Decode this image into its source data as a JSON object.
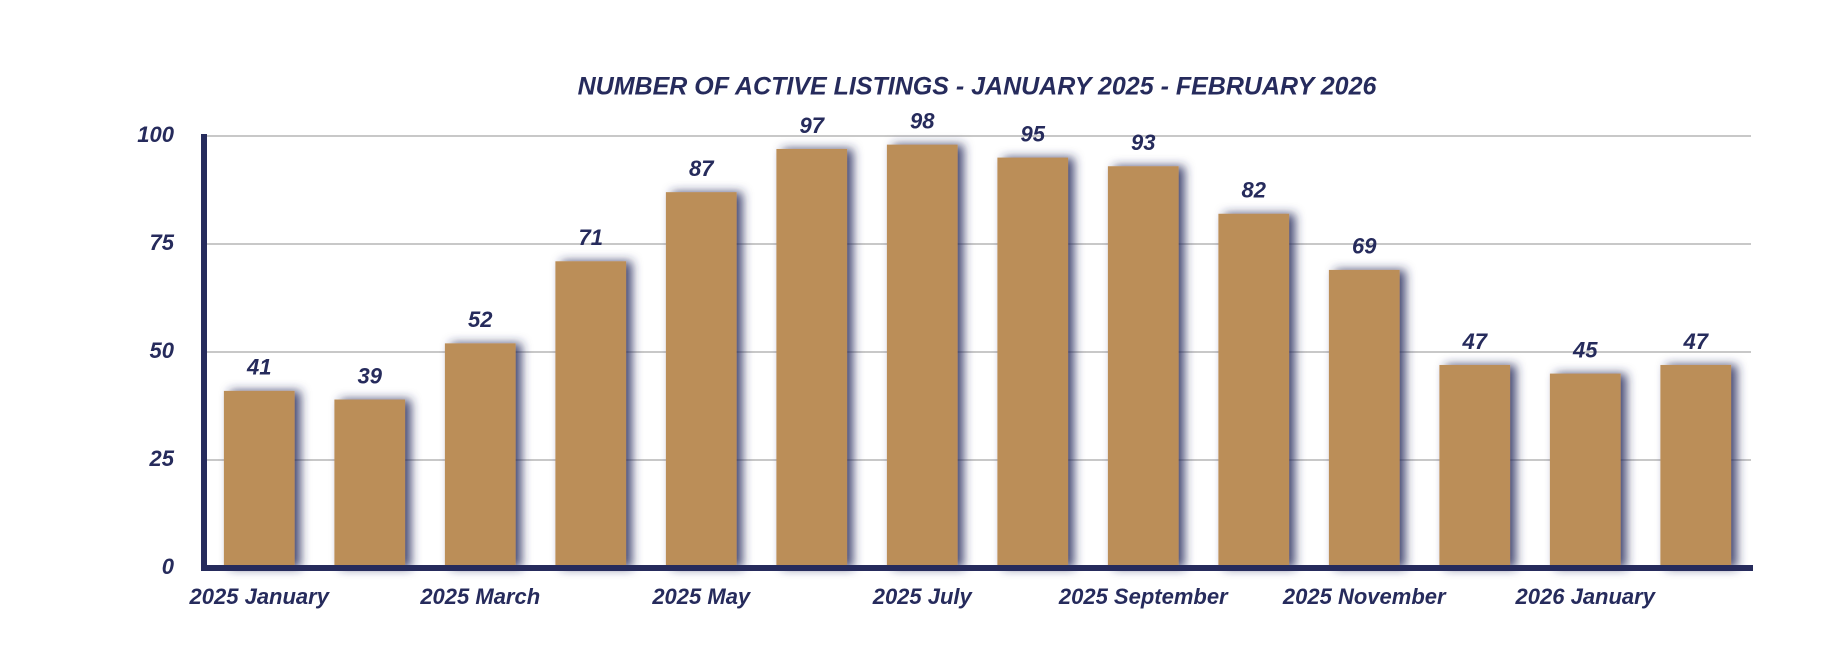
{
  "chart_data": {
    "type": "bar",
    "title": "NUMBER OF ACTIVE LISTINGS - JANUARY 2025 -  FEBRUARY 2026",
    "categories": [
      "2025 January",
      null,
      "2025 March",
      null,
      "2025 May",
      null,
      "2025 July",
      null,
      "2025 September",
      null,
      "2025 November",
      null,
      "2026 January",
      null
    ],
    "values": [
      41,
      39,
      52,
      71,
      87,
      97,
      98,
      95,
      93,
      82,
      69,
      47,
      45,
      47
    ],
    "color": "#bb8e58",
    "ylim": [
      0,
      100
    ],
    "yticks": [
      0,
      25,
      50,
      75,
      100
    ],
    "grid": true
  }
}
